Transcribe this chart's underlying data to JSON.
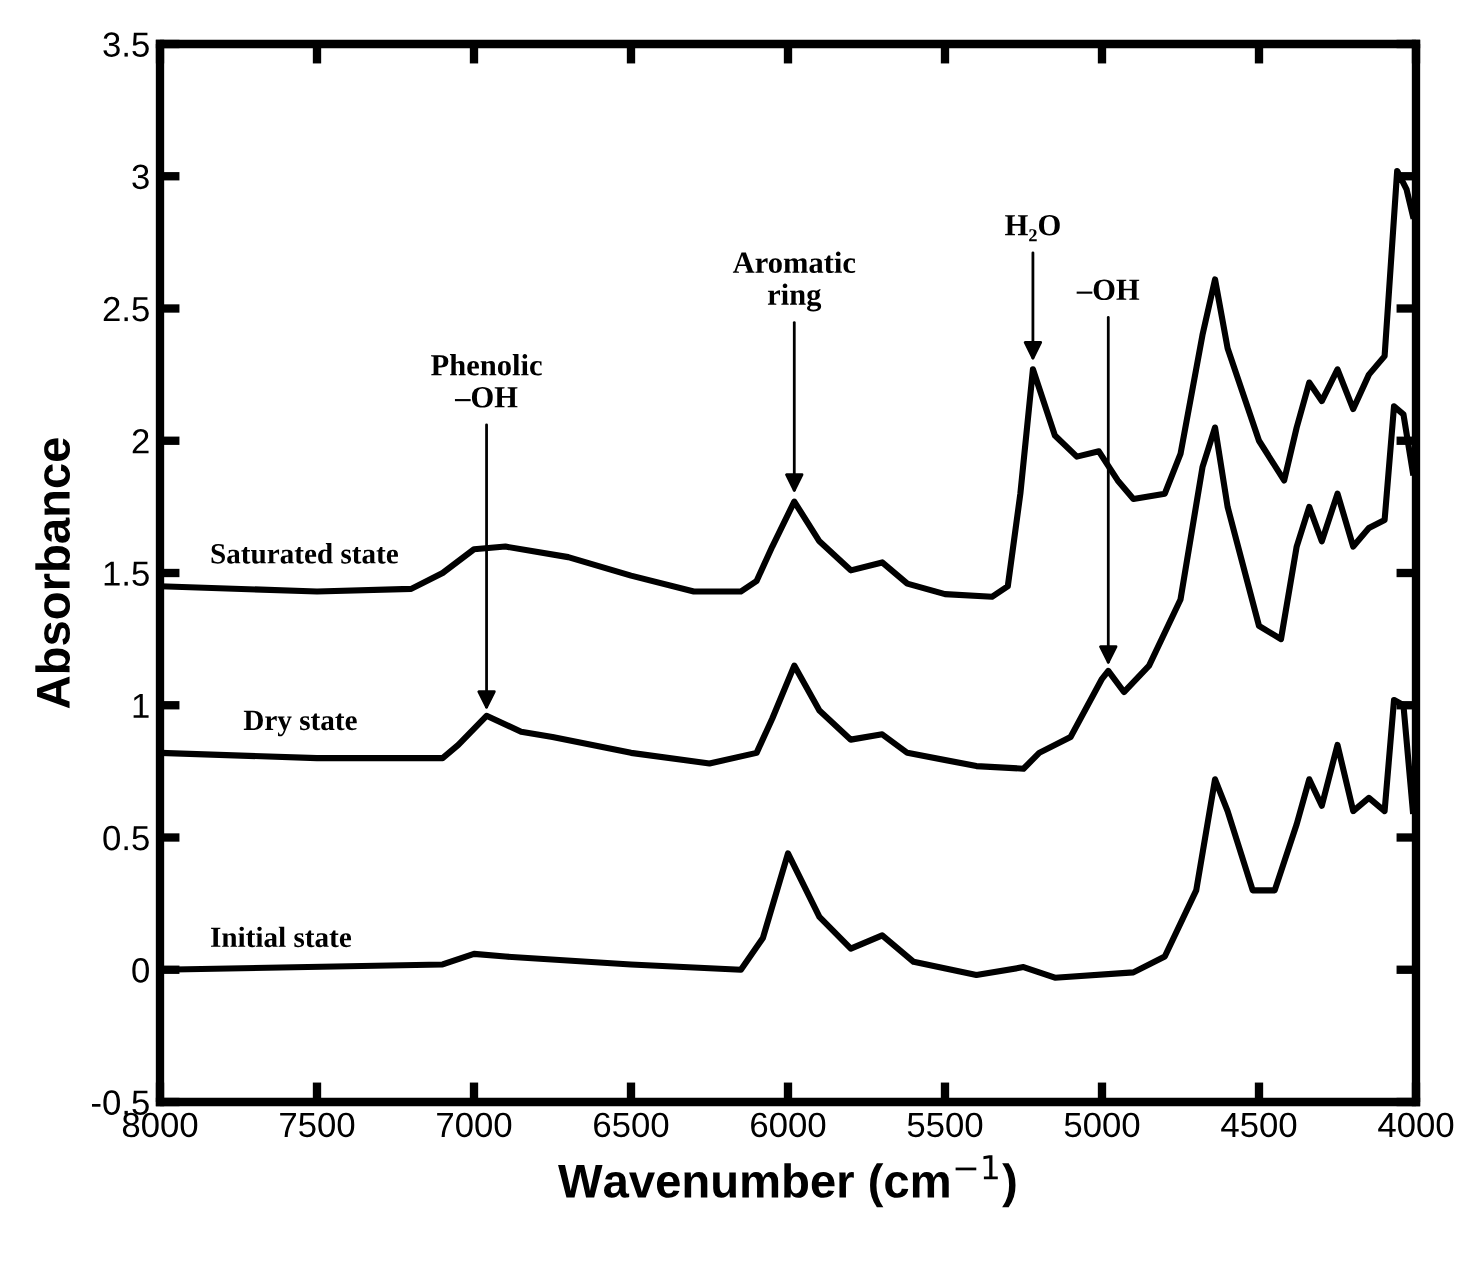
{
  "chart_data": {
    "type": "line",
    "xlabel": "Wavenumber (cm$^{−1}$)",
    "ylabel": "Absorbance",
    "xlim": [
      8000,
      4000
    ],
    "ylim": [
      -0.5,
      3.5
    ],
    "xticks": [
      8000,
      7500,
      7000,
      6500,
      6000,
      5500,
      5000,
      4500,
      4000
    ],
    "yticks": [
      -0.5,
      0,
      0.5,
      1,
      1.5,
      2,
      2.5,
      3,
      3.5
    ],
    "grid": false,
    "legend": false,
    "marker": "none",
    "line_style": "solid",
    "series": [
      {
        "name": "Saturated state",
        "color": "#000000",
        "x": [
          8000,
          7500,
          7200,
          7100,
          7000,
          6900,
          6700,
          6500,
          6300,
          6150,
          6100,
          6050,
          5980,
          5900,
          5800,
          5700,
          5620,
          5500,
          5350,
          5300,
          5260,
          5220,
          5150,
          5080,
          5010,
          4950,
          4900,
          4800,
          4750,
          4680,
          4640,
          4600,
          4500,
          4420,
          4380,
          4340,
          4300,
          4250,
          4200,
          4150,
          4100,
          4060,
          4030,
          4010
        ],
        "values": [
          1.45,
          1.43,
          1.44,
          1.5,
          1.59,
          1.6,
          1.56,
          1.49,
          1.43,
          1.43,
          1.47,
          1.6,
          1.77,
          1.62,
          1.51,
          1.54,
          1.46,
          1.42,
          1.41,
          1.45,
          1.8,
          2.27,
          2.02,
          1.94,
          1.96,
          1.85,
          1.78,
          1.8,
          1.95,
          2.4,
          2.61,
          2.35,
          2.0,
          1.85,
          2.05,
          2.22,
          2.15,
          2.27,
          2.12,
          2.25,
          2.32,
          3.02,
          2.95,
          2.85
        ]
      },
      {
        "name": "Dry state",
        "color": "#000000",
        "x": [
          8000,
          7500,
          7100,
          7050,
          6960,
          6850,
          6750,
          6500,
          6250,
          6100,
          6050,
          5980,
          5900,
          5800,
          5700,
          5620,
          5400,
          5250,
          5200,
          5100,
          5000,
          4980,
          4930,
          4850,
          4750,
          4680,
          4640,
          4600,
          4500,
          4430,
          4380,
          4340,
          4300,
          4250,
          4200,
          4150,
          4100,
          4070,
          4040,
          4010
        ],
        "values": [
          0.82,
          0.8,
          0.8,
          0.85,
          0.96,
          0.9,
          0.88,
          0.82,
          0.78,
          0.82,
          0.95,
          1.15,
          0.98,
          0.87,
          0.89,
          0.82,
          0.77,
          0.76,
          0.82,
          0.88,
          1.1,
          1.13,
          1.05,
          1.15,
          1.4,
          1.9,
          2.05,
          1.75,
          1.3,
          1.25,
          1.6,
          1.75,
          1.62,
          1.8,
          1.6,
          1.67,
          1.7,
          2.13,
          2.1,
          1.88
        ]
      },
      {
        "name": "Initial state",
        "color": "#000000",
        "x": [
          8000,
          7100,
          7000,
          6900,
          6500,
          6150,
          6080,
          6000,
          5900,
          5800,
          5700,
          5600,
          5400,
          5250,
          5150,
          4900,
          4800,
          4700,
          4640,
          4600,
          4520,
          4450,
          4380,
          4340,
          4300,
          4250,
          4200,
          4150,
          4100,
          4070,
          4040,
          4010
        ],
        "values": [
          0.0,
          0.02,
          0.06,
          0.05,
          0.02,
          0.0,
          0.12,
          0.44,
          0.2,
          0.08,
          0.13,
          0.03,
          -0.02,
          0.01,
          -0.03,
          -0.01,
          0.05,
          0.3,
          0.72,
          0.6,
          0.3,
          0.3,
          0.55,
          0.72,
          0.62,
          0.85,
          0.6,
          0.65,
          0.6,
          1.02,
          1.0,
          0.6
        ]
      }
    ],
    "annotations": [
      {
        "text": "Phenolic\n–OH",
        "x": 6960,
        "y": 0.96
      },
      {
        "text": "Aromatic\nring",
        "x": 5980,
        "y": 1.78
      },
      {
        "text": "H₂O",
        "x": 5220,
        "y": 2.28
      },
      {
        "text": "–OH",
        "x": 4980,
        "y": 1.13
      }
    ]
  }
}
